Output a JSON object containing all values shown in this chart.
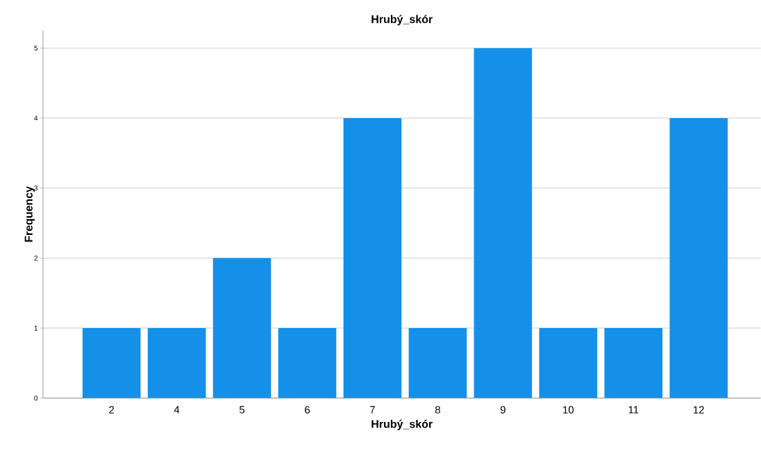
{
  "chart_data": {
    "type": "bar",
    "title": "Hrubý_skór",
    "xlabel": "Hrubý_skór",
    "ylabel": "Frequency",
    "categories": [
      "2",
      "4",
      "5",
      "6",
      "7",
      "8",
      "9",
      "10",
      "11",
      "12"
    ],
    "values": [
      1,
      1,
      2,
      1,
      4,
      1,
      5,
      1,
      1,
      4
    ],
    "color": "#1490e8",
    "ylim": [
      0,
      5.25
    ],
    "yticks": [
      0,
      1,
      2,
      3,
      4,
      5
    ],
    "grid": "y"
  }
}
